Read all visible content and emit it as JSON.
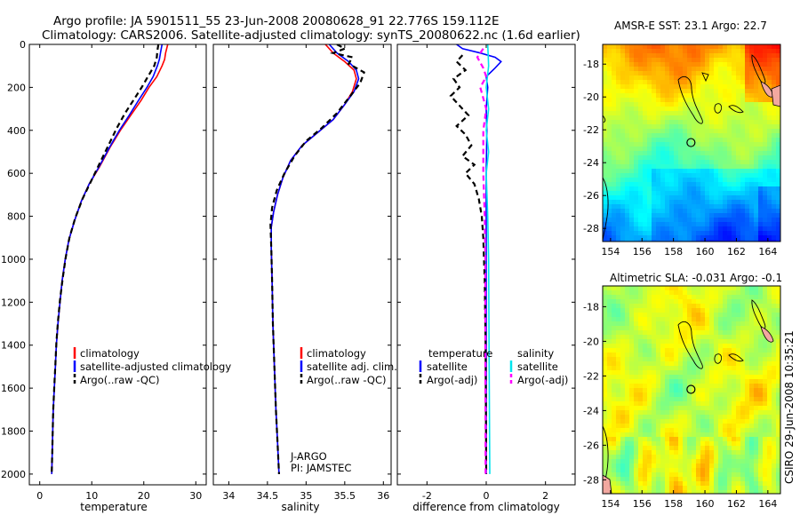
{
  "title": {
    "line1": "Argo profile: JA 5901511_55 23-Jun-2008 20080628_91 22.776S 159.112E",
    "line2": "Climatology: CARS2006. Satellite-adjusted climatology: synTS_20080622.nc (1.6d earlier)"
  },
  "credit": "CSIRO 29-Jun-2008 10:35:21",
  "colors": {
    "clim": "#ff0000",
    "sat": "#0000ff",
    "argo": "#000000",
    "sal_sat": "#00e5ee",
    "sal_argo": "#ff00ff"
  },
  "chart_data": [
    {
      "type": "line",
      "panel": "temperature",
      "xlabel": "temperature",
      "ylabel": "",
      "xlim": [
        -2,
        32
      ],
      "ylim": [
        2050,
        0
      ],
      "xticks": [
        "0",
        "10",
        "20",
        "30"
      ],
      "yticks": [
        "0",
        "200",
        "400",
        "600",
        "800",
        "1000",
        "1200",
        "1400",
        "1600",
        "1800",
        "2000"
      ],
      "series": [
        {
          "name": "climatology",
          "color": "#ff0000",
          "dash": "",
          "points": [
            [
              24.6,
              0
            ],
            [
              24.2,
              40
            ],
            [
              24.0,
              70
            ],
            [
              23.5,
              100
            ],
            [
              22.5,
              150
            ],
            [
              21.0,
              200
            ],
            [
              19.5,
              260
            ],
            [
              17.5,
              330
            ],
            [
              15.5,
              400
            ],
            [
              13.5,
              480
            ],
            [
              11.5,
              570
            ],
            [
              9.5,
              650
            ],
            [
              8.0,
              730
            ],
            [
              6.7,
              820
            ],
            [
              5.6,
              910
            ],
            [
              4.9,
              1000
            ],
            [
              4.3,
              1100
            ],
            [
              3.9,
              1200
            ],
            [
              3.5,
              1300
            ],
            [
              3.2,
              1400
            ],
            [
              3.0,
              1500
            ],
            [
              2.8,
              1600
            ],
            [
              2.6,
              1700
            ],
            [
              2.5,
              1800
            ],
            [
              2.4,
              1900
            ],
            [
              2.3,
              2000
            ]
          ]
        },
        {
          "name": "satellite-adjusted climatology",
          "color": "#0000ff",
          "dash": "",
          "points": [
            [
              23.5,
              0
            ],
            [
              23.2,
              40
            ],
            [
              23.0,
              70
            ],
            [
              22.6,
              100
            ],
            [
              21.8,
              150
            ],
            [
              20.6,
              200
            ],
            [
              19.0,
              260
            ],
            [
              17.2,
              330
            ],
            [
              15.3,
              400
            ],
            [
              13.4,
              480
            ],
            [
              11.4,
              570
            ],
            [
              9.5,
              650
            ],
            [
              8.0,
              730
            ],
            [
              6.7,
              820
            ],
            [
              5.6,
              910
            ],
            [
              4.9,
              1000
            ],
            [
              4.3,
              1100
            ],
            [
              3.9,
              1200
            ],
            [
              3.5,
              1300
            ],
            [
              3.2,
              1400
            ],
            [
              3.0,
              1500
            ],
            [
              2.8,
              1600
            ],
            [
              2.6,
              1700
            ],
            [
              2.5,
              1800
            ],
            [
              2.4,
              1900
            ],
            [
              2.3,
              2000
            ]
          ]
        },
        {
          "name": "Argo(..raw -QC)",
          "color": "#000000",
          "dash": "6,4",
          "points": [
            [
              22.8,
              0
            ],
            [
              22.6,
              30
            ],
            [
              22.5,
              60
            ],
            [
              22.0,
              100
            ],
            [
              20.8,
              150
            ],
            [
              19.6,
              200
            ],
            [
              18.0,
              260
            ],
            [
              16.4,
              320
            ],
            [
              14.8,
              390
            ],
            [
              13.2,
              470
            ],
            [
              11.4,
              560
            ],
            [
              9.8,
              640
            ],
            [
              8.2,
              720
            ],
            [
              6.8,
              810
            ],
            [
              5.7,
              900
            ],
            [
              5.0,
              990
            ],
            [
              4.4,
              1090
            ],
            [
              3.9,
              1190
            ],
            [
              3.5,
              1290
            ],
            [
              3.2,
              1390
            ],
            [
              3.0,
              1490
            ],
            [
              2.8,
              1590
            ],
            [
              2.6,
              1700
            ],
            [
              2.5,
              1800
            ],
            [
              2.4,
              1900
            ],
            [
              2.3,
              1990
            ]
          ]
        }
      ],
      "legend": [
        "climatology",
        "satellite-adjusted climatology",
        "Argo(..raw -QC)"
      ]
    },
    {
      "type": "line",
      "panel": "salinity",
      "xlabel": "salinity",
      "xlim": [
        33.8,
        36.1
      ],
      "ylim": [
        2050,
        0
      ],
      "xticks": [
        "34",
        "34.5",
        "35",
        "35.5",
        "36"
      ],
      "series": [
        {
          "name": "climatology",
          "color": "#ff0000",
          "dash": "",
          "points": [
            [
              35.25,
              0
            ],
            [
              35.35,
              40
            ],
            [
              35.5,
              80
            ],
            [
              35.62,
              120
            ],
            [
              35.65,
              160
            ],
            [
              35.6,
              220
            ],
            [
              35.5,
              280
            ],
            [
              35.35,
              350
            ],
            [
              35.15,
              410
            ],
            [
              34.95,
              470
            ],
            [
              34.8,
              540
            ],
            [
              34.7,
              620
            ],
            [
              34.63,
              700
            ],
            [
              34.58,
              780
            ],
            [
              34.55,
              850
            ],
            [
              34.55,
              950
            ],
            [
              34.56,
              1100
            ],
            [
              34.57,
              1300
            ],
            [
              34.59,
              1500
            ],
            [
              34.61,
              1700
            ],
            [
              34.63,
              1850
            ],
            [
              34.65,
              2000
            ]
          ]
        },
        {
          "name": "satellite adj. clim.",
          "color": "#0000ff",
          "dash": "",
          "points": [
            [
              35.3,
              0
            ],
            [
              35.4,
              40
            ],
            [
              35.55,
              80
            ],
            [
              35.65,
              120
            ],
            [
              35.68,
              160
            ],
            [
              35.62,
              220
            ],
            [
              35.5,
              280
            ],
            [
              35.35,
              350
            ],
            [
              35.15,
              410
            ],
            [
              34.95,
              470
            ],
            [
              34.8,
              540
            ],
            [
              34.7,
              620
            ],
            [
              34.63,
              700
            ],
            [
              34.58,
              780
            ],
            [
              34.55,
              850
            ],
            [
              34.55,
              950
            ],
            [
              34.56,
              1100
            ],
            [
              34.57,
              1300
            ],
            [
              34.59,
              1500
            ],
            [
              34.61,
              1700
            ],
            [
              34.63,
              1850
            ],
            [
              34.65,
              2000
            ]
          ]
        },
        {
          "name": "Argo(..raw -QC)",
          "color": "#000000",
          "dash": "6,4",
          "points": [
            [
              35.4,
              0
            ],
            [
              35.5,
              20
            ],
            [
              35.35,
              40
            ],
            [
              35.6,
              60
            ],
            [
              35.55,
              90
            ],
            [
              35.75,
              130
            ],
            [
              35.7,
              180
            ],
            [
              35.55,
              250
            ],
            [
              35.4,
              320
            ],
            [
              35.2,
              390
            ],
            [
              35.0,
              450
            ],
            [
              34.85,
              520
            ],
            [
              34.72,
              600
            ],
            [
              34.62,
              680
            ],
            [
              34.56,
              760
            ],
            [
              34.54,
              840
            ],
            [
              34.55,
              950
            ],
            [
              34.56,
              1100
            ],
            [
              34.57,
              1300
            ],
            [
              34.59,
              1500
            ],
            [
              34.61,
              1700
            ],
            [
              34.63,
              1850
            ],
            [
              34.65,
              2000
            ]
          ]
        }
      ],
      "legend": [
        "climatology",
        "satellite adj. clim.",
        "Argo(..raw -QC)"
      ],
      "annotation": [
        "J-ARGO",
        "PI: JAMSTEC"
      ]
    },
    {
      "type": "line",
      "panel": "difference",
      "xlabel": "difference from climatology",
      "xlim": [
        -3,
        3
      ],
      "ylim": [
        2050,
        0
      ],
      "xticks": [
        "-2",
        "0",
        "2"
      ],
      "series": [
        {
          "name": "temperature satellite",
          "color": "#0000ff",
          "dash": "",
          "points": [
            [
              -1.0,
              0
            ],
            [
              -0.8,
              20
            ],
            [
              -0.2,
              40
            ],
            [
              0.3,
              60
            ],
            [
              0.5,
              80
            ],
            [
              0.3,
              110
            ],
            [
              0.0,
              150
            ],
            [
              0.05,
              200
            ],
            [
              0.0,
              300
            ],
            [
              0.02,
              400
            ],
            [
              0.0,
              600
            ],
            [
              0.0,
              1000
            ],
            [
              0.0,
              1500
            ],
            [
              0.0,
              2000
            ]
          ]
        },
        {
          "name": "temperature Argo(-adj)",
          "color": "#000000",
          "dash": "6,4",
          "points": [
            [
              -0.8,
              50
            ],
            [
              -1.0,
              80
            ],
            [
              -0.7,
              120
            ],
            [
              -1.1,
              160
            ],
            [
              -0.9,
              200
            ],
            [
              -1.2,
              240
            ],
            [
              -0.8,
              300
            ],
            [
              -0.6,
              330
            ],
            [
              -1.0,
              380
            ],
            [
              -0.7,
              420
            ],
            [
              -0.5,
              470
            ],
            [
              -0.8,
              520
            ],
            [
              -0.4,
              560
            ],
            [
              -0.7,
              600
            ],
            [
              -0.4,
              650
            ],
            [
              -0.25,
              720
            ],
            [
              -0.15,
              800
            ],
            [
              -0.1,
              900
            ],
            [
              -0.05,
              1100
            ],
            [
              -0.02,
              1400
            ],
            [
              0.0,
              2000
            ]
          ]
        },
        {
          "name": "salinity satellite",
          "color": "#00e5ee",
          "dash": "",
          "points": [
            [
              0.05,
              0
            ],
            [
              0.08,
              100
            ],
            [
              0.0,
              200
            ],
            [
              0.08,
              300
            ],
            [
              0.0,
              400
            ],
            [
              0.08,
              500
            ],
            [
              0.0,
              600
            ],
            [
              0.05,
              800
            ],
            [
              0.08,
              1000
            ],
            [
              0.1,
              1500
            ],
            [
              0.12,
              2000
            ]
          ]
        },
        {
          "name": "salinity Argo(-adj)",
          "color": "#ff00ff",
          "dash": "6,4",
          "points": [
            [
              -0.1,
              20
            ],
            [
              -0.3,
              60
            ],
            [
              -0.1,
              110
            ],
            [
              0.0,
              150
            ],
            [
              -0.2,
              200
            ],
            [
              0.0,
              300
            ],
            [
              -0.1,
              400
            ],
            [
              -0.1,
              600
            ],
            [
              -0.05,
              800
            ],
            [
              -0.03,
              1000
            ],
            [
              -0.03,
              1400
            ],
            [
              -0.02,
              2000
            ]
          ]
        }
      ],
      "legend_headers": [
        "temperature",
        "salinity"
      ],
      "legend": [
        "satellite",
        "Argo(-adj)",
        "satellite",
        "Argo(-adj)"
      ]
    },
    {
      "type": "heatmap",
      "panel": "sst",
      "title": "AMSR-E SST: 23.1 Argo: 22.7",
      "xlim": [
        153.5,
        164.8
      ],
      "ylim": [
        -28.8,
        -16.8
      ],
      "xticks": [
        "154",
        "156",
        "158",
        "160",
        "162",
        "164"
      ],
      "yticks": [
        "-18",
        "-20",
        "-22",
        "-24",
        "-26",
        "-28"
      ],
      "marker": {
        "lon": 159.112,
        "lat": -22.776
      }
    },
    {
      "type": "heatmap",
      "panel": "sla",
      "title": "Altimetric SLA: -0.031 Argo: -0.1",
      "xlim": [
        153.5,
        164.8
      ],
      "ylim": [
        -28.8,
        -16.8
      ],
      "xticks": [
        "154",
        "156",
        "158",
        "160",
        "162",
        "164"
      ],
      "yticks": [
        "-18",
        "-20",
        "-22",
        "-24",
        "-26",
        "-28"
      ],
      "marker": {
        "lon": 159.112,
        "lat": -22.776
      }
    }
  ]
}
